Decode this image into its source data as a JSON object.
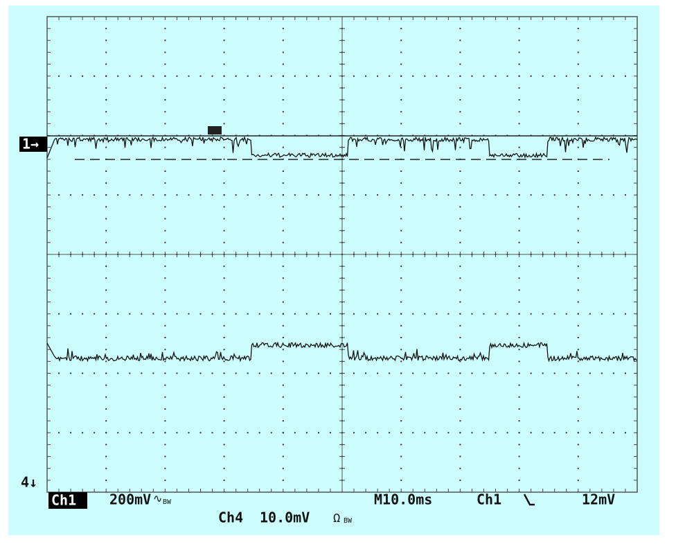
{
  "markers": {
    "ch1": "1→",
    "ch4": "4↓"
  },
  "status": {
    "ch1_label": "Ch1",
    "ch1_scale": "200mV",
    "ch1_coupling": "∿",
    "ch1_bw": "BW",
    "timebase": "M10.0ms",
    "trigger_source": "Ch1",
    "trigger_level": "12mV",
    "ch4_label": "Ch4",
    "ch4_scale": "10.0mV",
    "ch4_coupling": "Ω",
    "ch4_bw": "BW"
  }
}
